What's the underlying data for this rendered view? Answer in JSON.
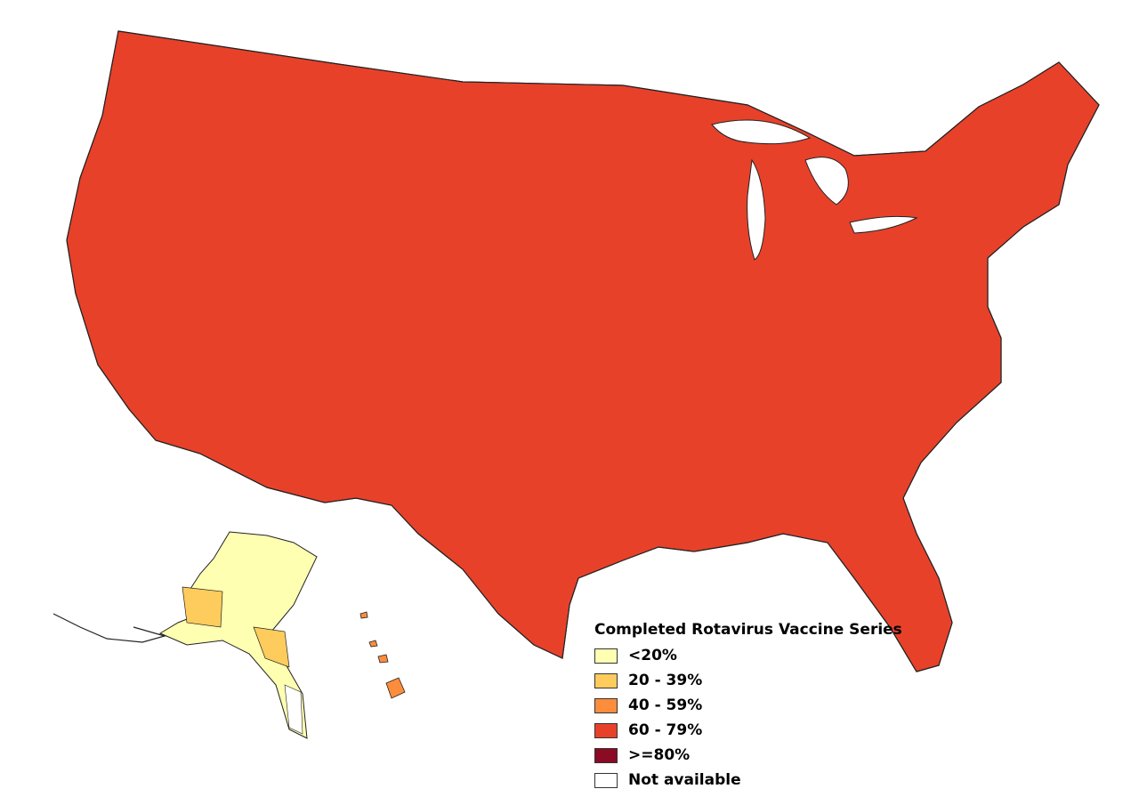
{
  "legend": {
    "title": "Completed Rotavirus Vaccine Series",
    "items": [
      {
        "label": "<20%",
        "color": "#ffffb2",
        "category": "lt20"
      },
      {
        "label": "20 - 39%",
        "color": "#fecc5c",
        "category": "20-39"
      },
      {
        "label": "40 - 59%",
        "color": "#fd8d3c",
        "category": "40-59"
      },
      {
        "label": "60 - 79%",
        "color": "#e8412a",
        "category": "60-79"
      },
      {
        "label": ">=80%",
        "color": "#8b0a24",
        "category": "gte80"
      },
      {
        "label": "Not available",
        "color": "#ffffff",
        "category": "na"
      }
    ]
  },
  "map_regions": {
    "contiguous_us": {
      "dominant_category": "60-79"
    },
    "alaska": {
      "dominant_category": "lt20"
    },
    "hawaii": {
      "dominant_category": "40-59"
    }
  },
  "colors": {
    "border": "#222222",
    "background": "#ffffff"
  }
}
